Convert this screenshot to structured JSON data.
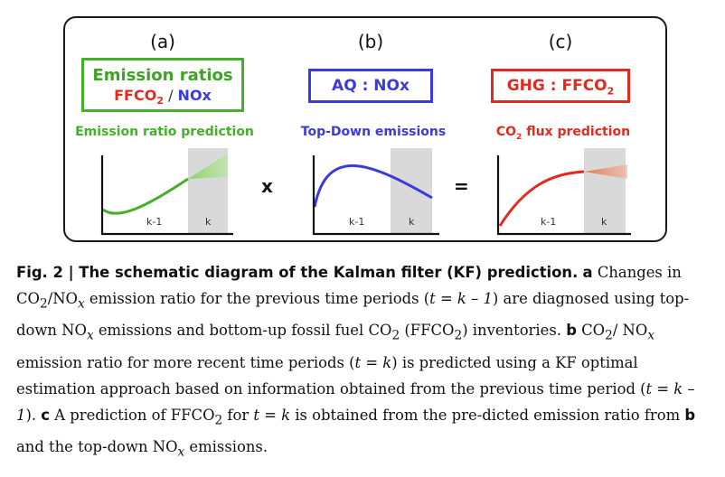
{
  "panels": {
    "a": {
      "letter": "(a)",
      "box_line1": "Emission ratios",
      "box_ffco": "FFCO",
      "box_sub2": "2",
      "box_slash": " / ",
      "box_nox": "NOx",
      "subtitle": "Emission ratio prediction",
      "tick_prev": "k-1",
      "tick_now": "k"
    },
    "b": {
      "letter": "(b)",
      "box": "AQ : NOx",
      "subtitle": "Top-Down emissions",
      "tick_prev": "k-1",
      "tick_now": "k"
    },
    "c": {
      "letter": "(c)",
      "box_text": "GHG : FFCO",
      "box_sub2": "2",
      "subtitle_co": "CO",
      "subtitle_sub2": "2",
      "subtitle_rest": " flux prediction",
      "tick_prev": "k-1",
      "tick_now": "k"
    }
  },
  "operators": {
    "multiply": "x",
    "equals": "="
  },
  "colors": {
    "green": "#44b02a",
    "blue": "#3a3adf",
    "red": "#e02b20",
    "gray_band": "#d9d9d9"
  },
  "caption": {
    "fig_label": "Fig. 2 | The schematic diagram of the Kalman filter (KF) prediction.",
    "a_letter": "a",
    "a_text1": " Changes in CO",
    "a_text2": "/NO",
    "a_text3": " emission ratio for the previous time periods (",
    "a_text4": "t = k – 1",
    "a_text5": ") are diagnosed using top-down NO",
    "a_text6": " emissions and bottom-up fossil fuel CO",
    "a_text7": " (FFCO",
    "a_text8": ") inventories.",
    "b_letter": "b",
    "b_text1": " CO",
    "b_text2": "/ NO",
    "b_text3": " emission ratio for more recent time periods (",
    "b_text4": "t = k",
    "b_text5": ") is predicted using a KF optimal estimation approach based on information obtained from the previous time period (",
    "b_text6": "t = k – 1",
    "b_text7": ").",
    "c_letter": "c",
    "c_text1": " A prediction of FFCO",
    "c_text2": " for ",
    "c_text3": "t = k",
    "c_text4": " is obtained from the pre-dicted emission ratio from ",
    "c_text5": "b",
    "c_text6": " and the top-down NO",
    "c_text7": " emissions.",
    "sub_2": "2",
    "sub_x": "x"
  }
}
